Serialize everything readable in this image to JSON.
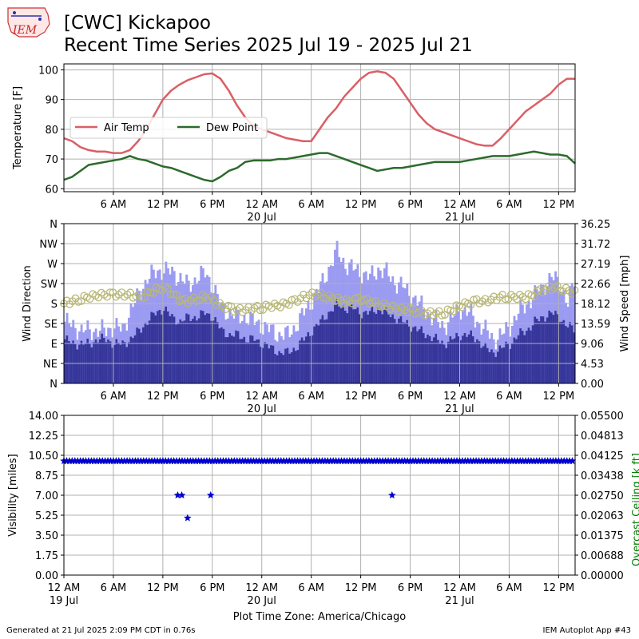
{
  "header": {
    "title_line1": "[CWC] Kickapoo",
    "title_line2": "Recent Time Series 2025 Jul 19 - 2025 Jul 21",
    "logo_text": "IEM"
  },
  "footer": {
    "left": "Generated at 21 Jul 2025 2:09 PM CDT in 0.76s",
    "right": "IEM Autoplot App #43"
  },
  "colors": {
    "air_temp": "#d95f66",
    "dew_point": "#2d6a2d",
    "gust_bar": "#9b9bf2",
    "speed_bar": "#36369a",
    "direction_marker": "#b8b878",
    "visibility_marker": "#0000cc",
    "ceiling_axis": "#008000",
    "grid": "#b0b0b0"
  },
  "chart_data": [
    {
      "type": "line",
      "ylabel": "Temperature [F]",
      "ylim": [
        59,
        102
      ],
      "yticks": [
        60,
        70,
        80,
        90,
        100
      ],
      "xlim_hours": [
        0,
        62
      ],
      "xticks": [
        {
          "h": 6,
          "label": "6 AM",
          "sub": ""
        },
        {
          "h": 12,
          "label": "12 PM",
          "sub": ""
        },
        {
          "h": 18,
          "label": "6 PM",
          "sub": ""
        },
        {
          "h": 24,
          "label": "12 AM",
          "sub": "20 Jul"
        },
        {
          "h": 30,
          "label": "6 AM",
          "sub": ""
        },
        {
          "h": 36,
          "label": "12 PM",
          "sub": ""
        },
        {
          "h": 42,
          "label": "6 PM",
          "sub": ""
        },
        {
          "h": 48,
          "label": "12 AM",
          "sub": "21 Jul"
        },
        {
          "h": 54,
          "label": "6 AM",
          "sub": ""
        },
        {
          "h": 60,
          "label": "12 PM",
          "sub": ""
        }
      ],
      "legend_position": "center-left",
      "series": [
        {
          "name": "Air Temp",
          "x": [
            0,
            1,
            2,
            3,
            4,
            5,
            6,
            7,
            8,
            9,
            10,
            11,
            12,
            13,
            14,
            15,
            16,
            17,
            18,
            19,
            20,
            21,
            22,
            23,
            24,
            25,
            26,
            27,
            28,
            29,
            30,
            31,
            32,
            33,
            34,
            35,
            36,
            37,
            38,
            39,
            40,
            41,
            42,
            43,
            44,
            45,
            46,
            47,
            48,
            49,
            50,
            51,
            52,
            53,
            54,
            55,
            56,
            57,
            58,
            59,
            60,
            61,
            62
          ],
          "y": [
            77,
            76,
            74,
            73,
            72.5,
            72.5,
            72,
            72,
            73,
            76,
            80,
            85,
            90,
            93,
            95,
            96.5,
            97.5,
            98.5,
            98.8,
            97,
            93,
            88,
            84,
            81,
            80,
            79,
            78,
            77,
            76.5,
            76,
            76,
            80,
            84,
            87,
            91,
            94,
            97,
            99,
            99.5,
            99,
            97,
            93,
            89,
            85,
            82,
            80,
            79,
            78,
            77,
            76,
            75,
            74.5,
            74.5,
            77,
            80,
            83,
            86,
            88,
            90,
            92,
            95,
            97,
            97
          ]
        },
        {
          "name": "Dew Point",
          "x": [
            0,
            1,
            2,
            3,
            4,
            5,
            6,
            7,
            8,
            9,
            10,
            11,
            12,
            13,
            14,
            15,
            16,
            17,
            18,
            19,
            20,
            21,
            22,
            23,
            24,
            25,
            26,
            27,
            28,
            29,
            30,
            31,
            32,
            33,
            34,
            35,
            36,
            37,
            38,
            39,
            40,
            41,
            42,
            43,
            44,
            45,
            46,
            47,
            48,
            49,
            50,
            51,
            52,
            53,
            54,
            55,
            56,
            57,
            58,
            59,
            60,
            61,
            62
          ],
          "y": [
            63,
            64,
            66,
            68,
            68.5,
            69,
            69.5,
            70,
            71,
            70,
            69.5,
            68.5,
            67.5,
            67,
            66,
            65,
            64,
            63,
            62.5,
            64,
            66,
            67,
            69,
            69.5,
            69.5,
            69.5,
            70,
            70,
            70.5,
            71,
            71.5,
            72,
            72,
            71,
            70,
            69,
            68,
            67,
            66,
            66.5,
            67,
            67,
            67.5,
            68,
            68.5,
            69,
            69,
            69,
            69,
            69.5,
            70,
            70.5,
            71,
            71,
            71,
            71.5,
            72,
            72.5,
            72,
            71.5,
            71.5,
            71,
            68.5
          ]
        }
      ]
    },
    {
      "type": "bar",
      "ylabel": "Wind Direction",
      "y2label": "Wind Speed [mph]",
      "direction_ticks": [
        "N",
        "NE",
        "E",
        "SE",
        "S",
        "SW",
        "W",
        "NW",
        "N"
      ],
      "speed_ticks": [
        "0.00",
        "4.53",
        "9.06",
        "13.59",
        "18.12",
        "22.66",
        "27.19",
        "31.72",
        "36.25"
      ],
      "ylim_speed": [
        0,
        36.25
      ],
      "ylim_direction": [
        0,
        360
      ],
      "xlim_hours": [
        0,
        62
      ],
      "series": [
        {
          "name": "gust_mph",
          "x": [
            0,
            1,
            2,
            3,
            4,
            5,
            6,
            7,
            8,
            9,
            10,
            11,
            12,
            13,
            14,
            15,
            16,
            17,
            18,
            19,
            20,
            21,
            22,
            23,
            24,
            25,
            26,
            27,
            28,
            29,
            30,
            31,
            32,
            33,
            34,
            35,
            36,
            37,
            38,
            39,
            40,
            41,
            42,
            43,
            44,
            45,
            46,
            47,
            48,
            49,
            50,
            51,
            52,
            53,
            54,
            55,
            56,
            57,
            58,
            59,
            60,
            61,
            62
          ],
          "y": [
            14,
            13,
            12,
            12,
            12,
            12,
            13,
            12,
            17,
            20,
            24,
            25,
            26,
            25,
            24,
            22,
            24,
            25,
            22,
            17,
            16,
            15,
            15,
            14,
            13,
            12,
            11,
            11,
            13,
            16,
            19,
            22,
            26,
            30,
            27,
            26,
            25,
            24,
            26,
            25,
            23,
            22,
            20,
            18,
            16,
            14,
            13,
            15,
            17,
            16,
            14,
            12,
            10,
            11,
            13,
            16,
            18,
            20,
            22,
            24,
            23,
            18,
            25
          ]
        },
        {
          "name": "speed_mph",
          "x": [
            0,
            1,
            2,
            3,
            4,
            5,
            6,
            7,
            8,
            9,
            10,
            11,
            12,
            13,
            14,
            15,
            16,
            17,
            18,
            19,
            20,
            21,
            22,
            23,
            24,
            25,
            26,
            27,
            28,
            29,
            30,
            31,
            32,
            33,
            34,
            35,
            36,
            37,
            38,
            39,
            40,
            41,
            42,
            43,
            44,
            45,
            46,
            47,
            48,
            49,
            50,
            51,
            52,
            53,
            54,
            55,
            56,
            57,
            58,
            59,
            60,
            61,
            62
          ],
          "y": [
            10,
            9,
            9,
            9,
            10,
            10,
            9,
            9,
            10,
            12,
            14,
            16,
            17,
            15,
            14,
            15,
            15,
            16,
            15,
            12,
            11,
            11,
            10,
            10,
            9,
            8,
            7,
            7,
            8,
            10,
            12,
            14,
            16,
            18,
            17,
            17,
            16,
            16,
            17,
            16,
            15,
            14,
            13,
            12,
            11,
            10,
            9,
            10,
            11,
            11,
            10,
            8,
            7,
            8,
            9,
            11,
            12,
            14,
            15,
            16,
            15,
            13,
            12
          ]
        },
        {
          "name": "direction_deg",
          "x": [
            0,
            1,
            2,
            3,
            4,
            5,
            6,
            7,
            8,
            9,
            10,
            11,
            12,
            13,
            14,
            15,
            16,
            17,
            18,
            19,
            20,
            21,
            22,
            23,
            24,
            25,
            26,
            27,
            28,
            29,
            30,
            31,
            32,
            33,
            34,
            35,
            36,
            37,
            38,
            39,
            40,
            41,
            42,
            43,
            44,
            45,
            46,
            47,
            48,
            49,
            50,
            51,
            52,
            53,
            54,
            55,
            56,
            57,
            58,
            59,
            60,
            61,
            62
          ],
          "y": [
            180,
            185,
            190,
            195,
            198,
            200,
            200,
            200,
            200,
            195,
            200,
            210,
            215,
            205,
            190,
            185,
            190,
            195,
            190,
            175,
            170,
            165,
            165,
            170,
            170,
            175,
            175,
            180,
            185,
            195,
            200,
            200,
            195,
            190,
            185,
            185,
            190,
            185,
            180,
            175,
            170,
            165,
            165,
            160,
            158,
            158,
            158,
            165,
            175,
            180,
            185,
            185,
            190,
            195,
            195,
            195,
            195,
            200,
            210,
            215,
            215,
            210,
            205
          ]
        }
      ]
    },
    {
      "type": "scatter",
      "ylabel": "Visibility [miles]",
      "y2label": "Overcast Ceiling [k ft]",
      "yticks": [
        "0.00",
        "1.75",
        "3.50",
        "5.25",
        "7.00",
        "8.75",
        "10.50",
        "12.25",
        "14.00"
      ],
      "y2ticks": [
        "0.00000",
        "0.00688",
        "0.01375",
        "0.02063",
        "0.02750",
        "0.03438",
        "0.04125",
        "0.04813",
        "0.05500"
      ],
      "ylim": [
        0,
        14
      ],
      "xlim_hours": [
        0,
        62
      ],
      "xlabel": "Plot Time Zone: America/Chicago",
      "xticks": [
        {
          "h": 0,
          "label": "12 AM",
          "sub": "19 Jul"
        },
        {
          "h": 6,
          "label": "6 AM",
          "sub": ""
        },
        {
          "h": 12,
          "label": "12 PM",
          "sub": ""
        },
        {
          "h": 18,
          "label": "6 PM",
          "sub": ""
        },
        {
          "h": 24,
          "label": "12 AM",
          "sub": "20 Jul"
        },
        {
          "h": 30,
          "label": "6 AM",
          "sub": ""
        },
        {
          "h": 36,
          "label": "12 PM",
          "sub": ""
        },
        {
          "h": 42,
          "label": "6 PM",
          "sub": ""
        },
        {
          "h": 48,
          "label": "12 AM",
          "sub": "21 Jul"
        },
        {
          "h": 54,
          "label": "6 AM",
          "sub": ""
        },
        {
          "h": 60,
          "label": "12 PM",
          "sub": ""
        }
      ],
      "baseline_visibility": 10,
      "baseline_range_hours": [
        0,
        62
      ],
      "series": [
        {
          "name": "visibility_reduced",
          "x": [
            13.8,
            14.3,
            15.0,
            17.8,
            39.8
          ],
          "y": [
            7,
            7,
            5,
            7,
            7
          ]
        }
      ]
    }
  ]
}
